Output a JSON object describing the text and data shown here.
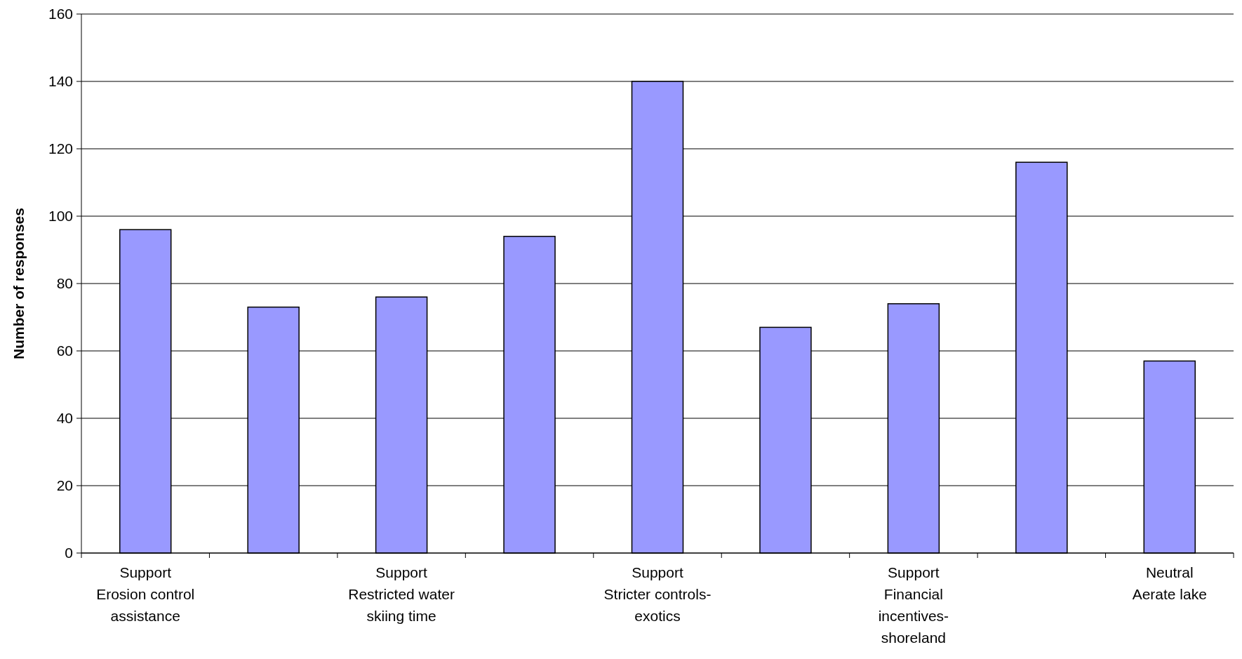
{
  "chart_data": {
    "type": "bar",
    "ylabel": "Number of responses",
    "categories": [
      "Support\nErosion control\nassistance",
      null,
      "Support\nRestricted water\nskiing time",
      null,
      "Support\nStricter controls-\nexotics",
      null,
      "Support\nFinancial\nincentives-\nshoreland",
      null,
      "Neutral\nAerate lake"
    ],
    "values": [
      96,
      73,
      76,
      94,
      140,
      67,
      74,
      116,
      57
    ],
    "color": "#9999ff",
    "ylim": [
      0,
      160
    ],
    "yticks": [
      0,
      20,
      40,
      60,
      80,
      100,
      120,
      140,
      160
    ],
    "grid": "y"
  }
}
